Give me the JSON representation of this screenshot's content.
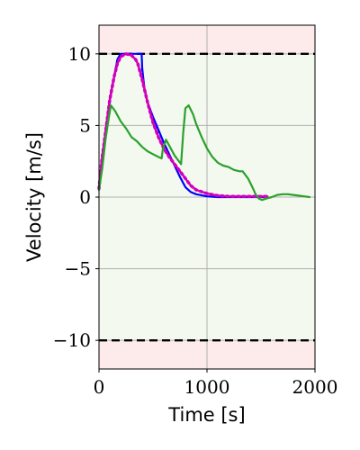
{
  "chart_data": {
    "type": "line",
    "xlabel": "Time [s]",
    "ylabel": "Velocity [m/s]",
    "xlim": [
      0,
      2000
    ],
    "ylim": [
      -12,
      12
    ],
    "xticks": [
      0,
      1000,
      2000
    ],
    "yticks": [
      -10,
      -5,
      0,
      5,
      10
    ],
    "xtick_labels": [
      "0",
      "1000",
      "2000"
    ],
    "ytick_labels": [
      "−10",
      "−5",
      "0",
      "5",
      "10"
    ],
    "grid": true,
    "bounds": {
      "upper": 10,
      "lower": -10,
      "style": "dashed",
      "color": "#000000"
    },
    "regions": [
      {
        "from": 10,
        "to": 12,
        "color": "#fdeaea"
      },
      {
        "from": -10,
        "to": 10,
        "color": "#f3f9ef"
      },
      {
        "from": -12,
        "to": -10,
        "color": "#fdeaea"
      }
    ],
    "series": [
      {
        "color": "#0000ff",
        "style": "solid",
        "x": [
          0,
          25,
          60,
          100,
          140,
          170,
          200,
          250,
          300,
          350,
          395,
          400,
          420,
          450,
          500,
          550,
          600,
          650,
          700,
          750,
          800,
          850,
          900,
          1000,
          1100,
          1200,
          1300,
          1400,
          1500,
          1560
        ],
        "y": [
          0.6,
          2.5,
          4.5,
          6.8,
          8.4,
          9.6,
          10.0,
          10.0,
          10.0,
          10.0,
          10.0,
          9.0,
          7.6,
          6.6,
          5.6,
          4.7,
          3.8,
          3.0,
          2.2,
          1.4,
          0.7,
          0.35,
          0.2,
          0.05,
          0.0,
          0.0,
          0.0,
          0.0,
          0.0,
          0.0
        ]
      },
      {
        "color": "#ff0000",
        "style": "solid",
        "x": [
          0,
          25,
          60,
          100,
          140,
          170,
          200,
          250,
          300,
          340,
          360,
          400,
          450,
          500,
          550,
          600,
          650,
          700,
          750,
          800,
          850,
          900,
          1000,
          1100,
          1200,
          1300,
          1400,
          1500,
          1560
        ],
        "y": [
          0.6,
          2.5,
          4.5,
          6.8,
          8.4,
          9.3,
          9.8,
          10.0,
          9.9,
          9.6,
          9.3,
          8.2,
          6.6,
          5.2,
          4.2,
          3.4,
          2.8,
          2.3,
          1.8,
          1.3,
          0.8,
          0.5,
          0.25,
          0.1,
          0.05,
          0.05,
          0.05,
          0.05,
          0.05
        ]
      },
      {
        "color": "#cc00cc",
        "style": "dotted",
        "x": [
          0,
          25,
          60,
          100,
          140,
          170,
          200,
          250,
          300,
          340,
          360,
          400,
          450,
          500,
          550,
          600,
          650,
          700,
          750,
          800,
          850,
          900,
          1000,
          1100,
          1200,
          1300,
          1400,
          1500,
          1560
        ],
        "y": [
          0.6,
          2.5,
          4.5,
          6.8,
          8.4,
          9.3,
          9.8,
          10.0,
          9.9,
          9.6,
          9.3,
          8.2,
          6.6,
          5.2,
          4.2,
          3.4,
          2.8,
          2.3,
          1.8,
          1.3,
          0.8,
          0.5,
          0.25,
          0.1,
          0.05,
          0.05,
          0.05,
          0.05,
          0.05
        ]
      },
      {
        "color": "#2ca02c",
        "style": "solid",
        "x": [
          0,
          30,
          60,
          90,
          110,
          150,
          200,
          250,
          300,
          350,
          400,
          450,
          500,
          550,
          580,
          590,
          620,
          650,
          700,
          760,
          780,
          800,
          830,
          870,
          900,
          950,
          1000,
          1050,
          1100,
          1150,
          1200,
          1250,
          1300,
          1330,
          1380,
          1420,
          1450,
          1480,
          1510,
          1550,
          1600,
          1650,
          1700,
          1750,
          1800,
          1850,
          1900,
          1950
        ],
        "y": [
          0.5,
          2.0,
          4.0,
          5.5,
          6.4,
          6.0,
          5.3,
          4.8,
          4.2,
          3.9,
          3.5,
          3.2,
          3.0,
          2.8,
          2.7,
          3.3,
          4.0,
          3.6,
          2.9,
          2.3,
          4.5,
          6.2,
          6.4,
          5.8,
          5.1,
          4.2,
          3.4,
          2.8,
          2.4,
          2.2,
          2.1,
          1.9,
          1.8,
          1.8,
          1.3,
          0.7,
          0.2,
          -0.1,
          -0.2,
          -0.1,
          0.0,
          0.15,
          0.2,
          0.2,
          0.15,
          0.1,
          0.05,
          0.0
        ]
      }
    ]
  }
}
